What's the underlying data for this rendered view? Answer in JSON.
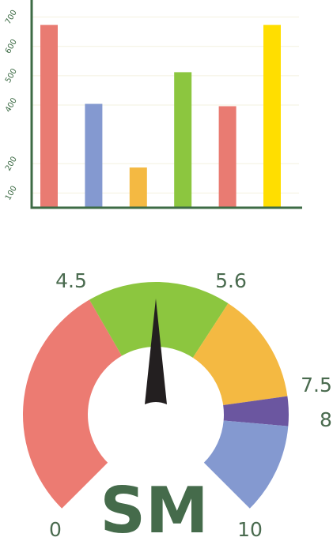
{
  "chart_data": [
    {
      "type": "bar",
      "values": [
        673,
        404,
        187,
        512,
        396,
        673
      ],
      "colors": [
        "#e97b72",
        "#8499d0",
        "#f4b942",
        "#8cc63f",
        "#e97b72",
        "#ffde00"
      ],
      "ylim": [
        50,
        750
      ],
      "yticks": [
        100,
        200,
        400,
        500,
        600,
        700
      ],
      "grid": true
    },
    {
      "type": "gauge",
      "ticks": [
        0,
        4.5,
        5.6,
        7.5,
        8,
        10
      ],
      "colors": [
        "#ec7b72",
        "#8cc63f",
        "#f4b942",
        "#6b56a0",
        "#8499d0"
      ],
      "label": "SM"
    }
  ]
}
